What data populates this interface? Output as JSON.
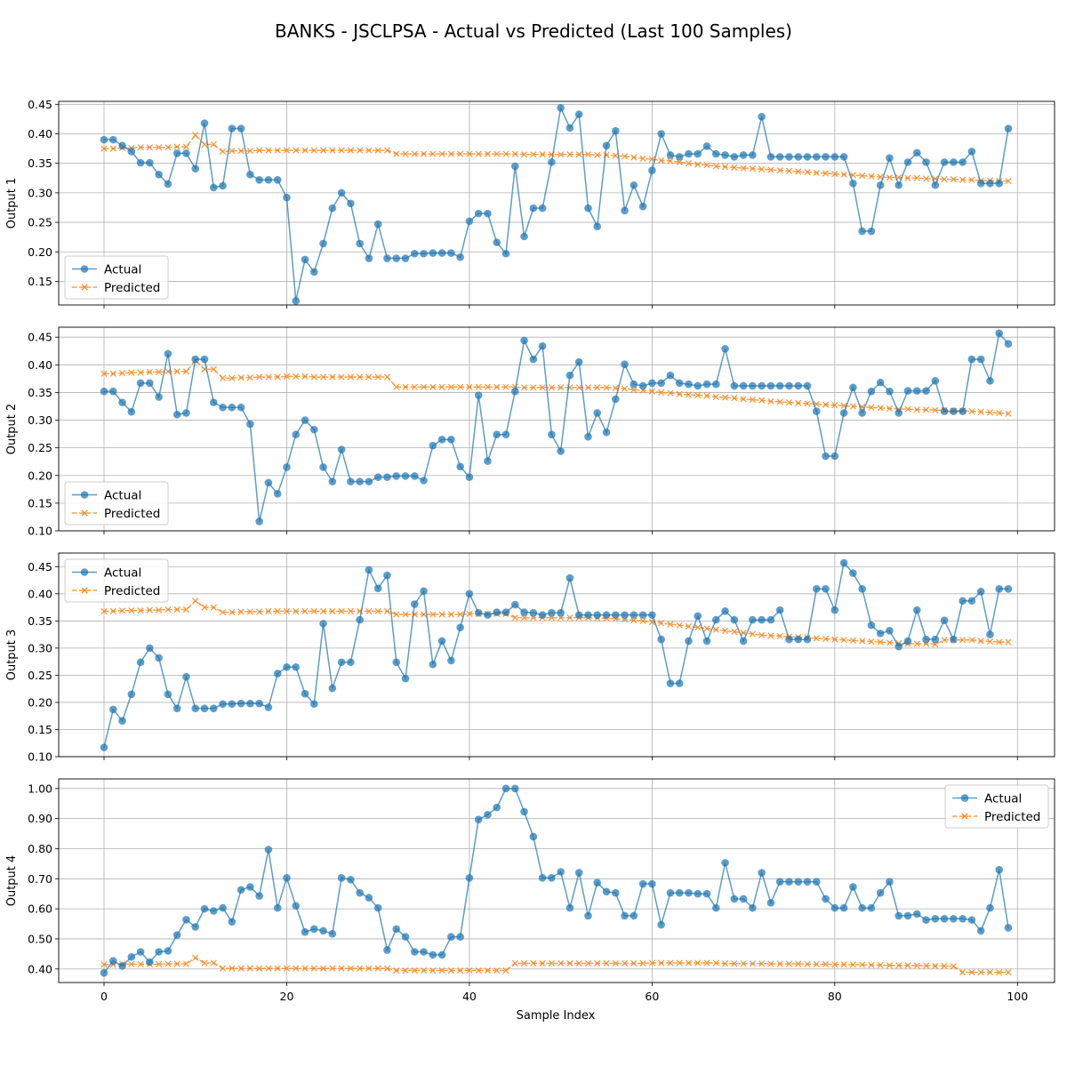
{
  "title": "BANKS - JSCLPSA - Actual vs Predicted (Last 100 Samples)",
  "xlabel": "Sample Index",
  "colors": {
    "actual": "#1f77b4",
    "predicted": "#ff7f0e"
  },
  "chart_data": [
    {
      "type": "line",
      "ylabel": "Output 1",
      "xlim": [
        0,
        99
      ],
      "ylim": [
        0.11,
        0.455
      ],
      "xticks": [
        0,
        20,
        40,
        60,
        80,
        100
      ],
      "yticks": [
        0.15,
        0.2,
        0.25,
        0.3,
        0.35,
        0.4,
        0.45
      ],
      "grid": true,
      "legend": "lower left",
      "series": [
        {
          "name": "Actual",
          "values": [
            0.39,
            0.39,
            0.38,
            0.37,
            0.351,
            0.351,
            0.331,
            0.315,
            0.367,
            0.367,
            0.341,
            0.418,
            0.309,
            0.312,
            0.409,
            0.409,
            0.331,
            0.322,
            0.322,
            0.322,
            0.292,
            0.117,
            0.187,
            0.166,
            0.214,
            0.274,
            0.3,
            0.282,
            0.214,
            0.189,
            0.247,
            0.189,
            0.189,
            0.189,
            0.197,
            0.197,
            0.198,
            0.198,
            0.198,
            0.191,
            0.252,
            0.265,
            0.265,
            0.216,
            0.197,
            0.345,
            0.226,
            0.274,
            0.274,
            0.352,
            0.444,
            0.41,
            0.433,
            0.274,
            0.243,
            0.38,
            0.405,
            0.27,
            0.313,
            0.277,
            0.338,
            0.4,
            0.364,
            0.361,
            0.366,
            0.366,
            0.379,
            0.366,
            0.364,
            0.361,
            0.364,
            0.364,
            0.429,
            0.361,
            0.361,
            0.361,
            0.361,
            0.361,
            0.361,
            0.361,
            0.361,
            0.361,
            0.316,
            0.235,
            0.235,
            0.313,
            0.359,
            0.313,
            0.352,
            0.368,
            0.352,
            0.313,
            0.352,
            0.352,
            0.352,
            0.37,
            0.316,
            0.316,
            0.316,
            0.409
          ]
        },
        {
          "name": "Predicted",
          "values": [
            0.375,
            0.375,
            0.376,
            0.376,
            0.377,
            0.377,
            0.377,
            0.377,
            0.378,
            0.378,
            0.398,
            0.382,
            0.382,
            0.37,
            0.371,
            0.371,
            0.371,
            0.372,
            0.372,
            0.372,
            0.372,
            0.372,
            0.372,
            0.372,
            0.372,
            0.372,
            0.372,
            0.372,
            0.372,
            0.372,
            0.372,
            0.372,
            0.366,
            0.366,
            0.366,
            0.366,
            0.366,
            0.366,
            0.366,
            0.366,
            0.366,
            0.366,
            0.366,
            0.366,
            0.366,
            0.366,
            0.365,
            0.365,
            0.365,
            0.365,
            0.365,
            0.365,
            0.365,
            0.365,
            0.364,
            0.364,
            0.363,
            0.362,
            0.36,
            0.358,
            0.357,
            0.355,
            0.354,
            0.352,
            0.35,
            0.348,
            0.347,
            0.345,
            0.344,
            0.343,
            0.342,
            0.341,
            0.34,
            0.339,
            0.338,
            0.337,
            0.336,
            0.335,
            0.334,
            0.333,
            0.332,
            0.331,
            0.33,
            0.329,
            0.328,
            0.327,
            0.326,
            0.326,
            0.325,
            0.325,
            0.324,
            0.324,
            0.323,
            0.323,
            0.322,
            0.322,
            0.321,
            0.321,
            0.32,
            0.32
          ]
        }
      ]
    },
    {
      "type": "line",
      "ylabel": "Output 2",
      "xlim": [
        0,
        99
      ],
      "ylim": [
        0.1,
        0.468
      ],
      "xticks": [
        0,
        20,
        40,
        60,
        80,
        100
      ],
      "yticks": [
        0.1,
        0.15,
        0.2,
        0.25,
        0.3,
        0.35,
        0.4,
        0.45
      ],
      "grid": true,
      "legend": "lower left",
      "series": [
        {
          "name": "Actual",
          "values": [
            0.352,
            0.352,
            0.332,
            0.315,
            0.367,
            0.367,
            0.342,
            0.42,
            0.31,
            0.313,
            0.41,
            0.41,
            0.332,
            0.323,
            0.323,
            0.323,
            0.293,
            0.117,
            0.187,
            0.167,
            0.215,
            0.274,
            0.3,
            0.283,
            0.215,
            0.189,
            0.247,
            0.189,
            0.189,
            0.189,
            0.197,
            0.197,
            0.199,
            0.199,
            0.199,
            0.191,
            0.254,
            0.265,
            0.265,
            0.216,
            0.197,
            0.345,
            0.226,
            0.274,
            0.274,
            0.352,
            0.444,
            0.41,
            0.434,
            0.274,
            0.244,
            0.381,
            0.405,
            0.27,
            0.313,
            0.278,
            0.338,
            0.401,
            0.365,
            0.362,
            0.367,
            0.367,
            0.381,
            0.367,
            0.365,
            0.362,
            0.365,
            0.365,
            0.429,
            0.362,
            0.362,
            0.362,
            0.362,
            0.362,
            0.362,
            0.362,
            0.362,
            0.362,
            0.316,
            0.235,
            0.235,
            0.313,
            0.359,
            0.313,
            0.352,
            0.368,
            0.352,
            0.313,
            0.353,
            0.353,
            0.353,
            0.371,
            0.316,
            0.316,
            0.316,
            0.41,
            0.41,
            0.371,
            0.457,
            0.438
          ]
        },
        {
          "name": "Predicted",
          "values": [
            0.384,
            0.384,
            0.385,
            0.386,
            0.386,
            0.387,
            0.387,
            0.388,
            0.388,
            0.388,
            0.408,
            0.392,
            0.392,
            0.376,
            0.376,
            0.377,
            0.377,
            0.378,
            0.378,
            0.378,
            0.379,
            0.379,
            0.379,
            0.378,
            0.378,
            0.378,
            0.378,
            0.378,
            0.378,
            0.378,
            0.378,
            0.378,
            0.36,
            0.36,
            0.36,
            0.36,
            0.36,
            0.36,
            0.36,
            0.36,
            0.36,
            0.36,
            0.36,
            0.36,
            0.36,
            0.36,
            0.359,
            0.359,
            0.359,
            0.359,
            0.359,
            0.359,
            0.359,
            0.359,
            0.359,
            0.359,
            0.358,
            0.357,
            0.355,
            0.354,
            0.352,
            0.35,
            0.349,
            0.347,
            0.346,
            0.345,
            0.344,
            0.342,
            0.341,
            0.34,
            0.338,
            0.337,
            0.336,
            0.334,
            0.333,
            0.332,
            0.331,
            0.33,
            0.329,
            0.328,
            0.327,
            0.326,
            0.325,
            0.324,
            0.323,
            0.322,
            0.321,
            0.32,
            0.32,
            0.319,
            0.319,
            0.318,
            0.318,
            0.317,
            0.317,
            0.316,
            0.315,
            0.314,
            0.313,
            0.312
          ]
        }
      ]
    },
    {
      "type": "line",
      "ylabel": "Output 3",
      "xlim": [
        0,
        99
      ],
      "ylim": [
        0.1,
        0.475
      ],
      "xticks": [
        0,
        20,
        40,
        60,
        80,
        100
      ],
      "yticks": [
        0.1,
        0.15,
        0.2,
        0.25,
        0.3,
        0.35,
        0.4,
        0.45
      ],
      "grid": true,
      "legend": "upper left",
      "series": [
        {
          "name": "Actual",
          "values": [
            0.117,
            0.187,
            0.166,
            0.215,
            0.274,
            0.3,
            0.282,
            0.215,
            0.189,
            0.247,
            0.189,
            0.189,
            0.189,
            0.197,
            0.197,
            0.198,
            0.198,
            0.198,
            0.191,
            0.253,
            0.265,
            0.265,
            0.216,
            0.197,
            0.345,
            0.226,
            0.274,
            0.274,
            0.352,
            0.444,
            0.41,
            0.434,
            0.274,
            0.244,
            0.381,
            0.405,
            0.27,
            0.313,
            0.277,
            0.338,
            0.4,
            0.365,
            0.361,
            0.366,
            0.366,
            0.38,
            0.366,
            0.365,
            0.361,
            0.365,
            0.365,
            0.429,
            0.361,
            0.361,
            0.361,
            0.361,
            0.361,
            0.361,
            0.361,
            0.361,
            0.361,
            0.316,
            0.235,
            0.235,
            0.313,
            0.359,
            0.313,
            0.352,
            0.368,
            0.352,
            0.313,
            0.352,
            0.352,
            0.352,
            0.37,
            0.316,
            0.316,
            0.316,
            0.409,
            0.409,
            0.37,
            0.457,
            0.438,
            0.409,
            0.342,
            0.327,
            0.332,
            0.303,
            0.313,
            0.37,
            0.316,
            0.316,
            0.351,
            0.316,
            0.387,
            0.387,
            0.404,
            0.325,
            0.409,
            0.409
          ]
        },
        {
          "name": "Predicted",
          "values": [
            0.368,
            0.368,
            0.369,
            0.369,
            0.369,
            0.37,
            0.37,
            0.371,
            0.371,
            0.371,
            0.387,
            0.375,
            0.375,
            0.366,
            0.366,
            0.367,
            0.367,
            0.367,
            0.368,
            0.368,
            0.368,
            0.368,
            0.368,
            0.368,
            0.368,
            0.368,
            0.368,
            0.368,
            0.368,
            0.368,
            0.368,
            0.368,
            0.362,
            0.362,
            0.362,
            0.362,
            0.362,
            0.362,
            0.362,
            0.362,
            0.363,
            0.363,
            0.363,
            0.363,
            0.363,
            0.356,
            0.356,
            0.356,
            0.356,
            0.356,
            0.356,
            0.356,
            0.356,
            0.356,
            0.355,
            0.355,
            0.354,
            0.353,
            0.351,
            0.35,
            0.348,
            0.346,
            0.344,
            0.342,
            0.34,
            0.338,
            0.336,
            0.334,
            0.332,
            0.33,
            0.328,
            0.326,
            0.324,
            0.323,
            0.322,
            0.321,
            0.32,
            0.319,
            0.318,
            0.317,
            0.316,
            0.315,
            0.314,
            0.313,
            0.312,
            0.311,
            0.31,
            0.309,
            0.308,
            0.308,
            0.308,
            0.307,
            0.315,
            0.315,
            0.315,
            0.315,
            0.313,
            0.312,
            0.311,
            0.311
          ]
        }
      ]
    },
    {
      "type": "line",
      "ylabel": "Output 4",
      "xlim": [
        0,
        99
      ],
      "ylim": [
        0.355,
        1.032
      ],
      "xticks": [
        0,
        20,
        40,
        60,
        80,
        100
      ],
      "yticks": [
        0.4,
        0.5,
        0.6,
        0.7,
        0.8,
        0.9,
        1.0
      ],
      "grid": true,
      "legend": "upper right",
      "series": [
        {
          "name": "Actual",
          "values": [
            0.387,
            0.427,
            0.41,
            0.44,
            0.457,
            0.423,
            0.457,
            0.46,
            0.513,
            0.564,
            0.54,
            0.6,
            0.593,
            0.603,
            0.557,
            0.663,
            0.673,
            0.643,
            0.797,
            0.603,
            0.703,
            0.61,
            0.523,
            0.533,
            0.527,
            0.517,
            0.703,
            0.697,
            0.653,
            0.637,
            0.603,
            0.463,
            0.533,
            0.507,
            0.457,
            0.457,
            0.447,
            0.447,
            0.507,
            0.507,
            0.703,
            0.897,
            0.913,
            0.937,
            1.0,
            1.0,
            0.923,
            0.84,
            0.703,
            0.703,
            0.723,
            0.603,
            0.72,
            0.577,
            0.687,
            0.657,
            0.653,
            0.577,
            0.577,
            0.683,
            0.683,
            0.547,
            0.653,
            0.653,
            0.653,
            0.65,
            0.65,
            0.603,
            0.753,
            0.633,
            0.633,
            0.603,
            0.72,
            0.62,
            0.69,
            0.69,
            0.69,
            0.69,
            0.69,
            0.633,
            0.603,
            0.603,
            0.673,
            0.603,
            0.603,
            0.653,
            0.69,
            0.577,
            0.577,
            0.583,
            0.563,
            0.567,
            0.567,
            0.567,
            0.567,
            0.563,
            0.527,
            0.603,
            0.73,
            0.537
          ]
        },
        {
          "name": "Predicted",
          "values": [
            0.415,
            0.415,
            0.416,
            0.416,
            0.416,
            0.416,
            0.416,
            0.417,
            0.417,
            0.417,
            0.437,
            0.42,
            0.42,
            0.402,
            0.402,
            0.402,
            0.402,
            0.402,
            0.402,
            0.402,
            0.402,
            0.402,
            0.402,
            0.402,
            0.402,
            0.402,
            0.402,
            0.402,
            0.402,
            0.402,
            0.402,
            0.402,
            0.395,
            0.395,
            0.395,
            0.395,
            0.395,
            0.395,
            0.395,
            0.395,
            0.395,
            0.395,
            0.395,
            0.395,
            0.395,
            0.419,
            0.419,
            0.419,
            0.419,
            0.419,
            0.419,
            0.419,
            0.419,
            0.419,
            0.419,
            0.419,
            0.419,
            0.419,
            0.419,
            0.419,
            0.42,
            0.42,
            0.42,
            0.42,
            0.42,
            0.42,
            0.42,
            0.42,
            0.418,
            0.418,
            0.418,
            0.418,
            0.418,
            0.417,
            0.417,
            0.417,
            0.417,
            0.416,
            0.416,
            0.416,
            0.415,
            0.415,
            0.414,
            0.414,
            0.413,
            0.413,
            0.412,
            0.412,
            0.412,
            0.411,
            0.411,
            0.41,
            0.41,
            0.409,
            0.389,
            0.389,
            0.389,
            0.389,
            0.389,
            0.389
          ]
        }
      ]
    }
  ]
}
